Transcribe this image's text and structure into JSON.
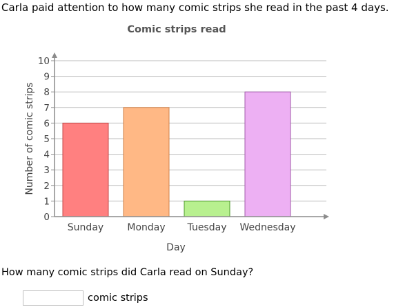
{
  "intro": "Carla paid attention to how many comic strips she read in the past 4 days.",
  "question": "How many comic strips did Carla read on Sunday?",
  "answer": {
    "value": "",
    "unit": "comic strips"
  },
  "colors": {
    "grid": "#bdbdbd",
    "axis": "#8c8c8c",
    "title": "#555555"
  },
  "chart_data": {
    "type": "bar",
    "title": "Comic strips read",
    "xlabel": "Day",
    "ylabel": "Number of comic strips",
    "categories": [
      "Sunday",
      "Monday",
      "Tuesday",
      "Wednesday"
    ],
    "values": [
      6,
      7,
      1,
      8
    ],
    "ylim": [
      0,
      10
    ],
    "yticks": [
      0,
      1,
      2,
      3,
      4,
      5,
      6,
      7,
      8,
      9,
      10
    ],
    "grid": true,
    "bar_colors": [
      "#ff8080",
      "#ffb885",
      "#b8f08f",
      "#edb0f3"
    ],
    "bar_edge_colors": [
      "#c44848",
      "#cf8149",
      "#4e9a2d",
      "#a25aab"
    ]
  }
}
